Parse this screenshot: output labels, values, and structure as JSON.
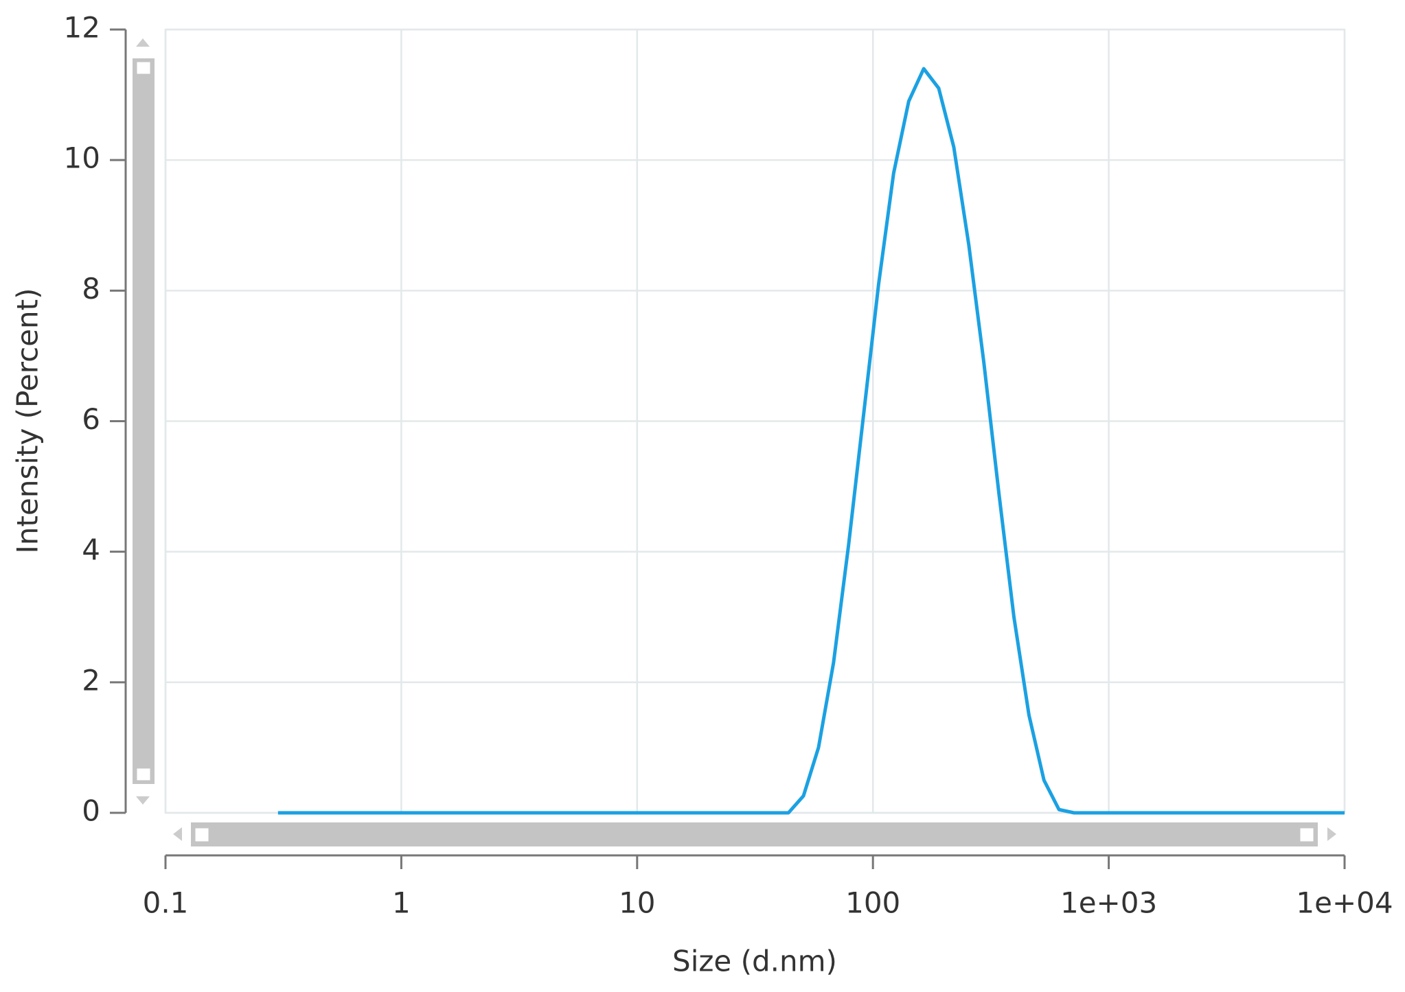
{
  "chart_data": {
    "type": "line",
    "x_label": "Size (d.nm)",
    "y_label": "Intensity (Percent)",
    "x": [
      0.3,
      37.84,
      43.82,
      50.75,
      58.77,
      68.06,
      78.82,
      91.28,
      105.7,
      122.4,
      141.8,
      164.2,
      190.1,
      220.2,
      255.0,
      295.3,
      342.0,
      396.1,
      458.7,
      531.2,
      615.1,
      712.4,
      10000
    ],
    "values": [
      0,
      0,
      0,
      0.26,
      1.0,
      2.3,
      4.1,
      6.1,
      8.1,
      9.8,
      10.9,
      11.4,
      11.1,
      10.2,
      8.7,
      6.9,
      4.9,
      3.0,
      1.5,
      0.5,
      0.05,
      0,
      0
    ],
    "color": "#1ba1e2",
    "xscale": "log",
    "xlim": [
      0.1,
      10000
    ],
    "xticks": [
      0.1,
      1,
      10,
      100,
      {
        "value": 1000,
        "label": "1e+03"
      },
      {
        "value": 10000,
        "label": "1e+04"
      }
    ],
    "ylim": [
      0,
      12
    ],
    "yticks": [
      0,
      2,
      4,
      6,
      8,
      10,
      12
    ],
    "grid": true
  }
}
